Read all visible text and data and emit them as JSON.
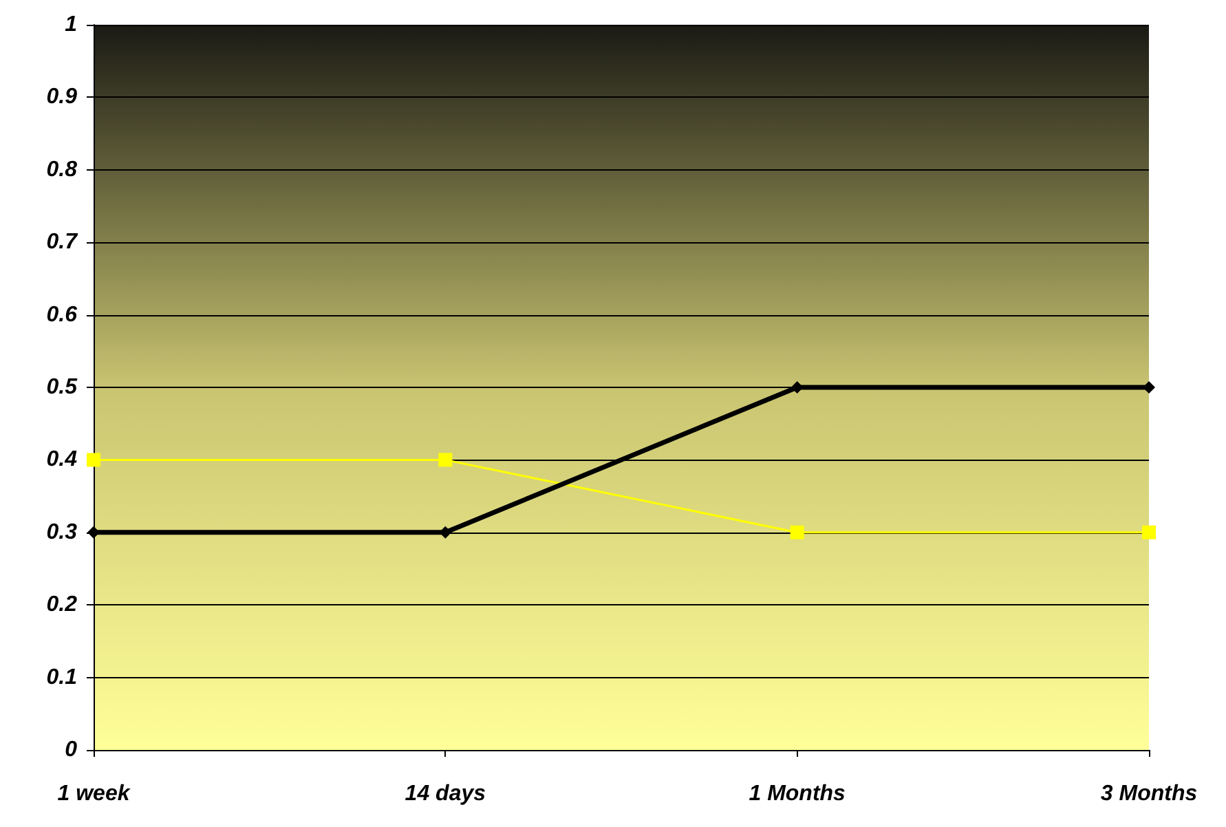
{
  "chart_data": {
    "type": "line",
    "categories": [
      "1 week",
      "14 days",
      "1 Months",
      "3 Months"
    ],
    "series": [
      {
        "color": "#000000",
        "values": [
          0.3,
          0.3,
          0.5,
          0.5
        ],
        "marker": "diamond"
      },
      {
        "color": "#ffff00",
        "values": [
          0.4,
          0.4,
          0.3,
          0.3
        ],
        "marker": "square"
      }
    ],
    "ylim": [
      0,
      1
    ],
    "yticks": [
      0,
      0.1,
      0.2,
      0.3,
      0.4,
      0.5,
      0.6,
      0.7,
      0.8,
      0.9,
      1
    ],
    "grid": "y",
    "line_style": "solid"
  }
}
